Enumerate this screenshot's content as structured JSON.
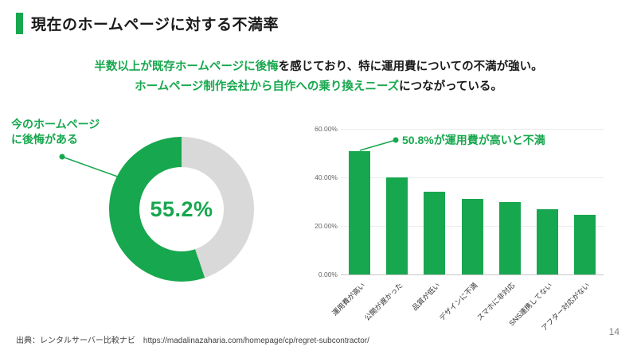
{
  "slide": {
    "title": "現在のホームページに対する不満率",
    "subtitle_line1_green": "半数以上が既存ホームページに後悔",
    "subtitle_line1_black": "を感じており、特に運用費についての不満が強い。",
    "subtitle_line2_green": "ホームページ制作会社から自作への乗り換えニーズ",
    "subtitle_line2_black": "につながっている。",
    "source": "出典：レンタルサーバー比較ナビ　https://madalinazaharia.com/homepage/cp/regret-subcontractor/",
    "page_number": "14"
  },
  "colors": {
    "green": "#17a74e",
    "gray": "#d9d9d9"
  },
  "chart_data": [
    {
      "type": "pie",
      "subtype": "donut",
      "title": "今のホームページに後悔がある",
      "label_line1": "今のホームページ",
      "label_line2": "に後悔がある",
      "center_label": "55.2%",
      "slices": [
        {
          "label": "今のホームページに後悔がある",
          "value": 55.2,
          "color": "#17a74e"
        },
        {
          "label": "",
          "value": 44.8,
          "color": "#d9d9d9"
        }
      ]
    },
    {
      "type": "bar",
      "annotation": "50.8%が運用費が高いと不満",
      "categories": [
        "運用費が高い",
        "公開が遅かった",
        "品質が低い",
        "デザインに不満",
        "スマホに非対応",
        "SNS連携してない",
        "アフター対応がない"
      ],
      "values": [
        50.8,
        40.0,
        34.0,
        31.0,
        30.0,
        27.0,
        24.5
      ],
      "title": "",
      "xlabel": "",
      "ylabel": "",
      "ylim": [
        0,
        60
      ],
      "yticks": [
        "60.00%",
        "40.00%",
        "20.00%",
        "0.00%"
      ],
      "bar_color": "#17a74e",
      "grid": true,
      "legend": false
    }
  ]
}
